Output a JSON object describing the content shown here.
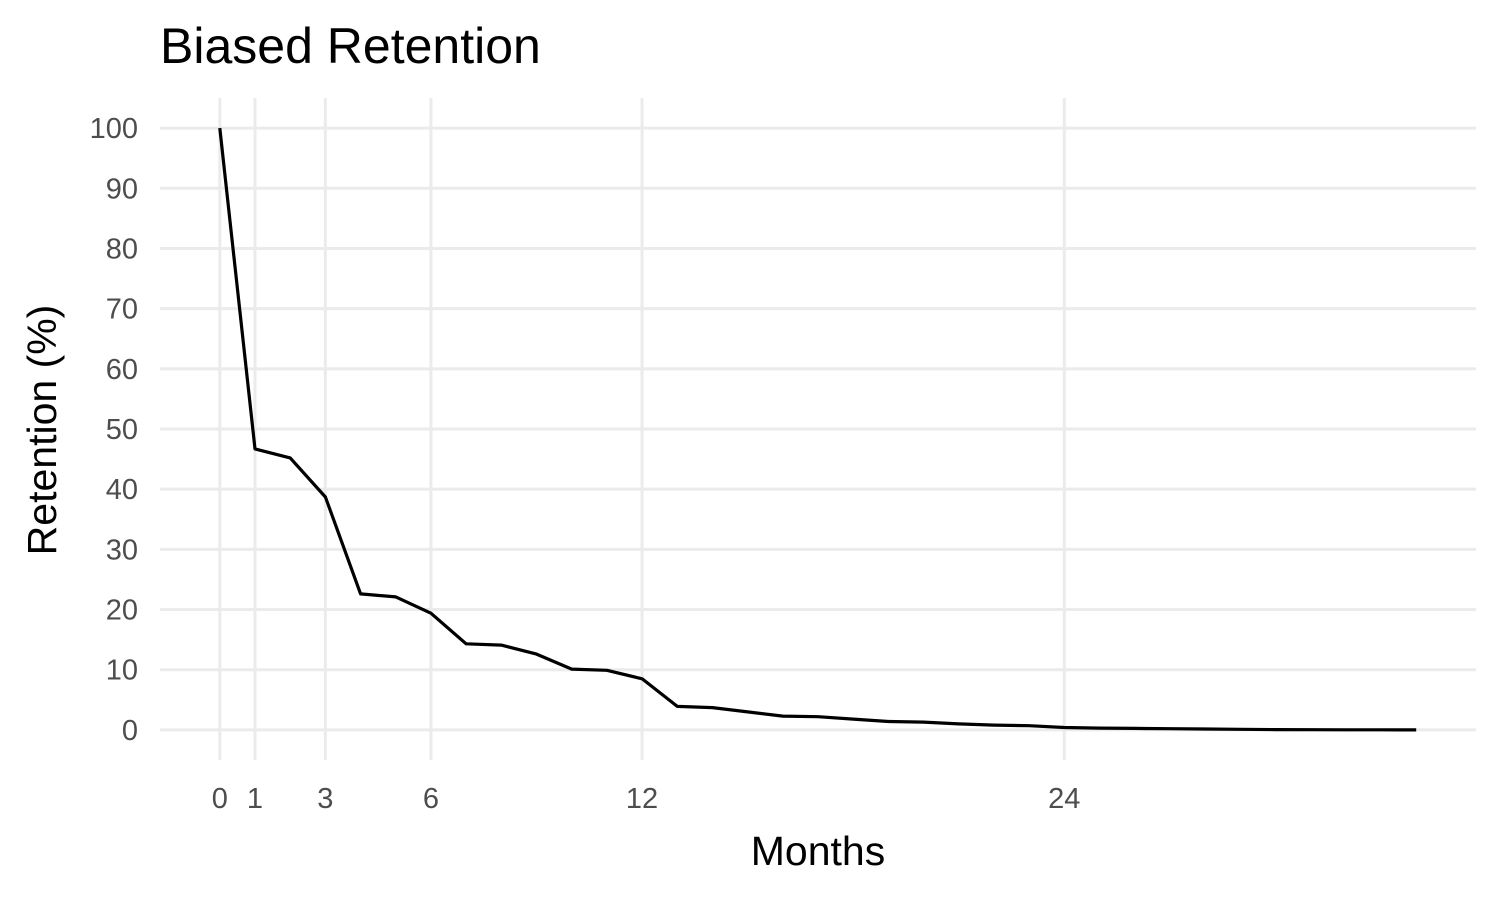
{
  "chart_data": {
    "type": "line",
    "title": "Biased Retention",
    "xlabel": "Months",
    "ylabel": "Retention (%)",
    "xlim": [
      -1.7,
      35.7
    ],
    "ylim": [
      -5,
      105
    ],
    "x_ticks": [
      0,
      1,
      3,
      6,
      12,
      24
    ],
    "y_ticks": [
      0,
      10,
      20,
      30,
      40,
      50,
      60,
      70,
      80,
      90,
      100
    ],
    "grid": true,
    "line_color": "#000000",
    "grid_color": "#ebebeb",
    "series": [
      {
        "name": "Retention",
        "x": [
          0,
          1,
          2,
          3,
          4,
          5,
          6,
          7,
          8,
          9,
          10,
          11,
          12,
          13,
          14,
          15,
          16,
          17,
          18,
          19,
          20,
          21,
          22,
          23,
          24,
          25,
          26,
          27,
          28,
          29,
          30,
          31,
          32,
          33,
          34
        ],
        "values": [
          100,
          46.7,
          45.2,
          38.7,
          22.6,
          22.1,
          19.4,
          14.3,
          14.1,
          12.6,
          10.1,
          9.9,
          8.5,
          3.9,
          3.7,
          3.0,
          2.3,
          2.2,
          1.8,
          1.4,
          1.3,
          1.0,
          0.8,
          0.7,
          0.4,
          0.3,
          0.25,
          0.2,
          0.15,
          0.1,
          0.05,
          0.03,
          0.02,
          0.01,
          0.0
        ]
      }
    ]
  }
}
